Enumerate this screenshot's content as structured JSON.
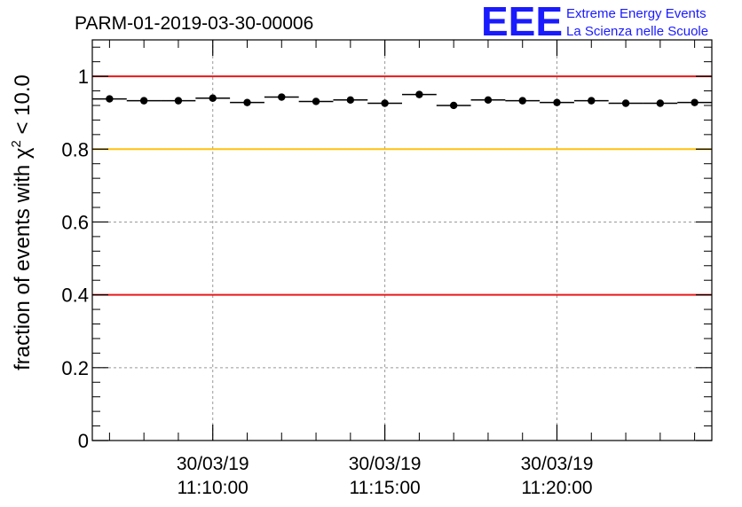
{
  "chart_data": {
    "type": "scatter",
    "title": "PARM-01-2019-03-30-00006",
    "ylabel_prefix": "fraction of events with ",
    "ylabel_chi": "χ",
    "ylabel_sup": "2",
    "ylabel_suffix": " < 10.0",
    "ylim": [
      0,
      1.1
    ],
    "yticks": [
      {
        "value": 0,
        "label": "0"
      },
      {
        "value": 0.2,
        "label": "0.2"
      },
      {
        "value": 0.4,
        "label": "0.4"
      },
      {
        "value": 0.6,
        "label": "0.6"
      },
      {
        "value": 0.8,
        "label": "0.8"
      },
      {
        "value": 1.0,
        "label": "1"
      }
    ],
    "xlim_minutes": [
      6.5,
      24.5
    ],
    "xticks": [
      {
        "minute": 10,
        "line1": "30/03/19",
        "line2": "11:10:00"
      },
      {
        "minute": 15,
        "line1": "30/03/19",
        "line2": "11:15:00"
      },
      {
        "minute": 20,
        "line1": "30/03/19",
        "line2": "11:20:00"
      }
    ],
    "bin_width_minutes": 1,
    "x_minutes": [
      7,
      8,
      9,
      10,
      11,
      12,
      13,
      14,
      15,
      16,
      17,
      18,
      19,
      20,
      21,
      22,
      23,
      24
    ],
    "values": [
      0.938,
      0.933,
      0.933,
      0.94,
      0.928,
      0.943,
      0.931,
      0.935,
      0.926,
      0.95,
      0.92,
      0.935,
      0.933,
      0.928,
      0.933,
      0.926,
      0.926,
      0.928
    ],
    "reference_lines": [
      {
        "value": 1.0,
        "color": "#e8191a"
      },
      {
        "value": 0.8,
        "color": "#ffc20e"
      },
      {
        "value": 0.4,
        "color": "#e8191a"
      }
    ],
    "grid": true,
    "logo": {
      "text": "EEE",
      "line1": "Extreme Energy Events",
      "line2": "La Scienza nelle Scuole"
    }
  }
}
